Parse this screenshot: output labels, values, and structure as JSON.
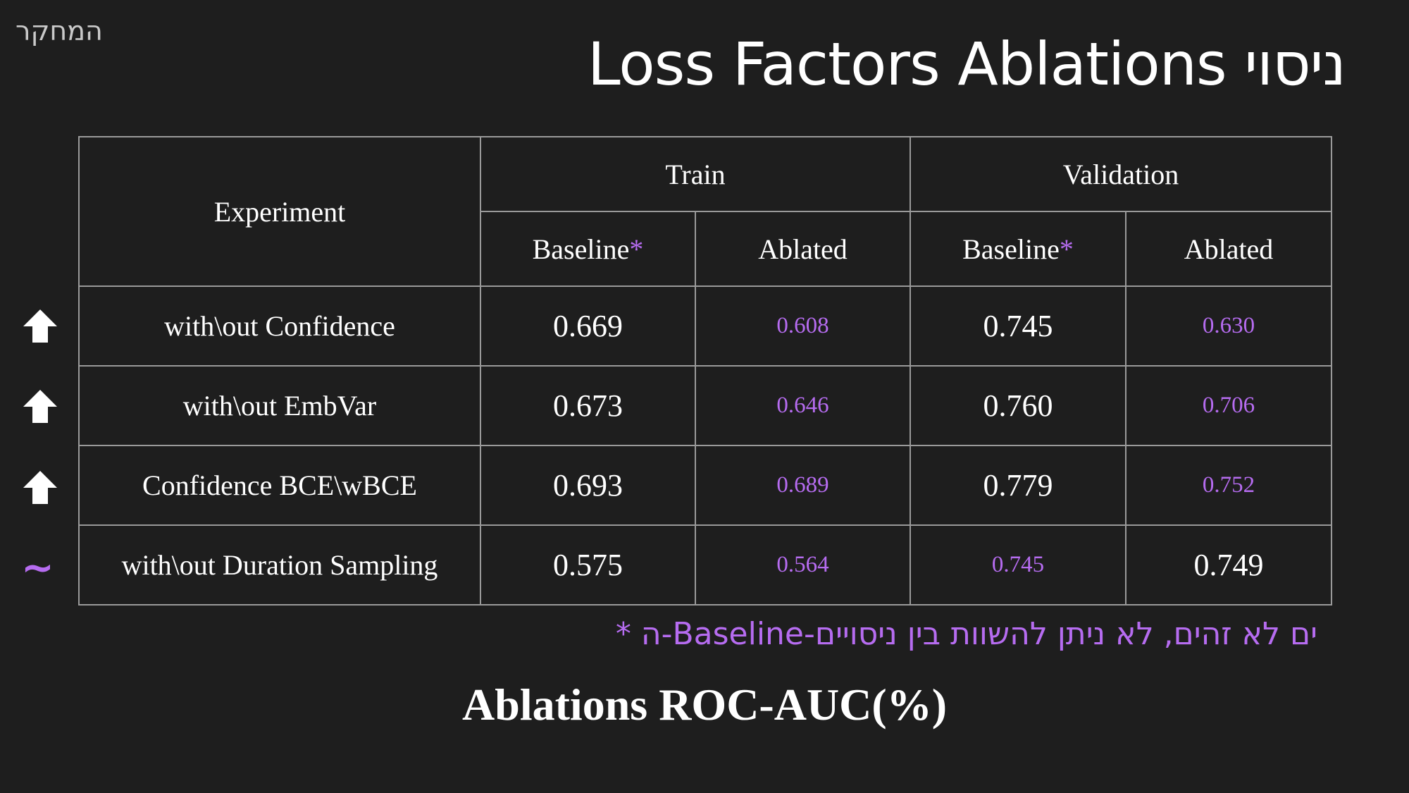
{
  "section_label": "המחקר",
  "title": "Loss Factors Ablations ניסוי",
  "table": {
    "experiment_header": "Experiment",
    "groups": [
      "Train",
      "Validation"
    ],
    "sub_headers": {
      "baseline": "Baseline",
      "baseline_mark": "*",
      "ablated": "Ablated"
    },
    "rows": [
      {
        "indicator": "arrow-up",
        "name": "with\\out Confidence",
        "train_baseline": "0.669",
        "train_ablated": "0.608",
        "val_baseline": "0.745",
        "val_ablated": "0.630"
      },
      {
        "indicator": "arrow-up",
        "name": "with\\out EmbVar",
        "train_baseline": "0.673",
        "train_ablated": "0.646",
        "val_baseline": "0.760",
        "val_ablated": "0.706"
      },
      {
        "indicator": "arrow-up",
        "name": "Confidence BCE\\wBCE",
        "train_baseline": "0.693",
        "train_ablated": "0.689",
        "val_baseline": "0.779",
        "val_ablated": "0.752"
      },
      {
        "indicator": "tilde",
        "indicator_text": "~",
        "name": "with\\out Duration Sampling",
        "train_baseline": "0.575",
        "train_ablated": "0.564",
        "val_baseline": "0.745",
        "val_ablated": "0.749"
      }
    ]
  },
  "footnote": "* ה-Baseline-ים לא זהים, לא ניתן להשוות בין ניסויים",
  "caption": "Ablations ROC-AUC(%)",
  "colors": {
    "background": "#1e1e1e",
    "accent": "#b66cf0",
    "border": "#9a9a9a",
    "text": "#ffffff"
  }
}
